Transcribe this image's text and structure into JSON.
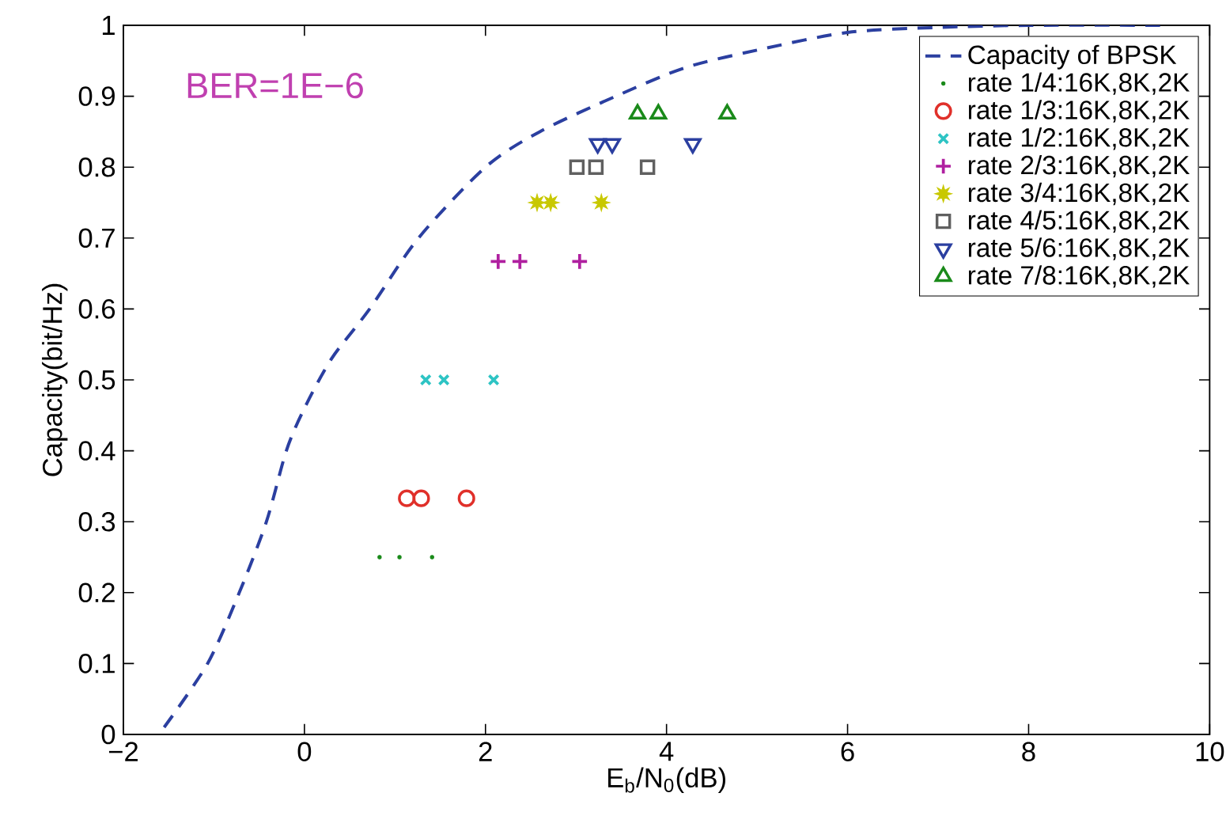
{
  "chart_data": {
    "type": "scatter",
    "xlabel": "E$_{b}$/N$_{0}$(dB)",
    "ylabel": "Capacity(bit/Hz)",
    "annotations": [
      "BER=1E−6"
    ],
    "xlim": [
      -2,
      10
    ],
    "ylim": [
      0,
      1
    ],
    "xticks": [
      {
        "value": -2,
        "label": "−2"
      },
      0,
      2,
      4,
      6,
      8,
      10
    ],
    "yticks": [
      0,
      0.1,
      0.2,
      0.3,
      0.4,
      0.5,
      0.6,
      0.7,
      0.8,
      0.9,
      1
    ],
    "legend": "top right",
    "series": [
      {
        "name": "Capacity of BPSK",
        "type": "line",
        "line_style": "dashed",
        "marker": "none",
        "color": "#2b3fa0",
        "x": [
          -1.55,
          -1.07,
          -0.72,
          -0.42,
          -0.2,
          0,
          0.3,
          0.72,
          1.26,
          2,
          2.6,
          3.44,
          4.2,
          5,
          6,
          7,
          8,
          9.5
        ],
        "values": [
          0.01,
          0.1,
          0.2,
          0.3,
          0.4,
          0.46,
          0.53,
          0.6,
          0.7,
          0.8,
          0.85,
          0.9,
          0.94,
          0.965,
          0.99,
          0.997,
          1,
          1
        ]
      },
      {
        "name": "rate 1/4:16K,8K,2K",
        "marker": "point",
        "color": "#1a8a1a",
        "x": [
          0.83,
          1.05,
          1.41
        ],
        "values": [
          0.25,
          0.25,
          0.25
        ]
      },
      {
        "name": "rate 1/3:16K,8K,2K",
        "marker": "circle",
        "color": "#e0302a",
        "x": [
          1.13,
          1.29,
          1.79
        ],
        "values": [
          0.333,
          0.333,
          0.333
        ]
      },
      {
        "name": "rate 1/2:16K,8K,2K",
        "marker": "cross",
        "color": "#2ec4c4",
        "x": [
          1.34,
          1.54,
          2.09
        ],
        "values": [
          0.5,
          0.5,
          0.5
        ]
      },
      {
        "name": "rate 2/3:16K,8K,2K",
        "marker": "plus",
        "color": "#b020a0",
        "x": [
          2.14,
          2.38,
          3.04
        ],
        "values": [
          0.667,
          0.667,
          0.667
        ]
      },
      {
        "name": "rate 3/4:16K,8K,2K",
        "marker": "star",
        "color": "#c8c800",
        "x": [
          2.57,
          2.72,
          3.28
        ],
        "values": [
          0.75,
          0.75,
          0.75
        ]
      },
      {
        "name": "rate 4/5:16K,8K,2K",
        "marker": "square",
        "color": "#606060",
        "x": [
          3.01,
          3.22,
          3.79
        ],
        "values": [
          0.8,
          0.8,
          0.8
        ]
      },
      {
        "name": "rate 5/6:16K,8K,2K",
        "marker": "triangle-down",
        "color": "#2b3fa0",
        "x": [
          3.24,
          3.4,
          4.29
        ],
        "values": [
          0.833,
          0.833,
          0.833
        ]
      },
      {
        "name": "rate 7/8:16K,8K,2K",
        "marker": "triangle",
        "color": "#1a8a1a",
        "x": [
          3.68,
          3.91,
          4.67
        ],
        "values": [
          0.875,
          0.875,
          0.875
        ]
      }
    ]
  }
}
